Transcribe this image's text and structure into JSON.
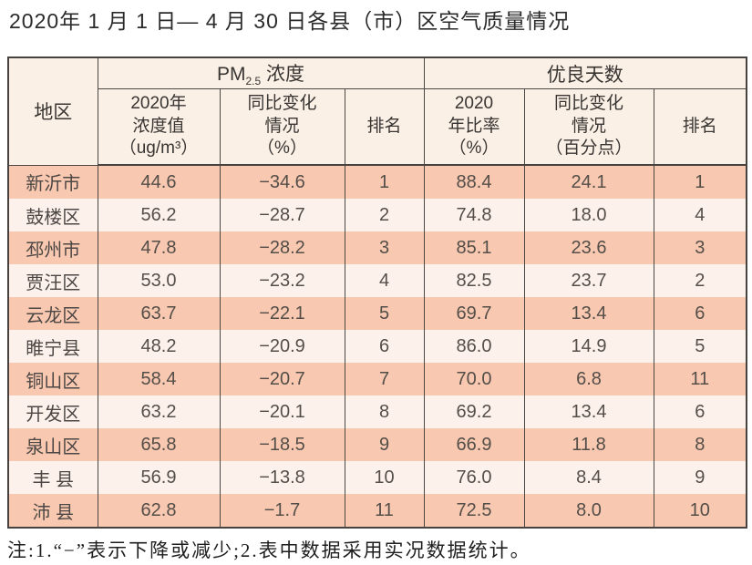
{
  "title": "2020年 1 月 1 日— 4 月 30 日各县（市）区空气质量情况",
  "table": {
    "header": {
      "region": "地区",
      "pm_group_prefix": "PM",
      "pm_group_sub": "2.5",
      "pm_group_suffix": " 浓度",
      "good_days_group": "优良天数",
      "pm_value": "2020年\n浓度值\n（ug/m³）",
      "pm_change": "同比变化\n情况\n（%）",
      "pm_rank": "排名",
      "rate_value": "2020\n年比率\n（%）",
      "rate_change": "同比变化\n情况\n（百分点）",
      "rate_rank": "排名"
    },
    "rows": [
      {
        "region": "新沂市",
        "pm_value": "44.6",
        "pm_change": "−34.6",
        "pm_rank": "1",
        "rate_value": "88.4",
        "rate_change": "24.1",
        "rate_rank": "1"
      },
      {
        "region": "鼓楼区",
        "pm_value": "56.2",
        "pm_change": "−28.7",
        "pm_rank": "2",
        "rate_value": "74.8",
        "rate_change": "18.0",
        "rate_rank": "4"
      },
      {
        "region": "邳州市",
        "pm_value": "47.8",
        "pm_change": "−28.2",
        "pm_rank": "3",
        "rate_value": "85.1",
        "rate_change": "23.6",
        "rate_rank": "3"
      },
      {
        "region": "贾汪区",
        "pm_value": "53.0",
        "pm_change": "−23.2",
        "pm_rank": "4",
        "rate_value": "82.5",
        "rate_change": "23.7",
        "rate_rank": "2"
      },
      {
        "region": "云龙区",
        "pm_value": "63.7",
        "pm_change": "−22.1",
        "pm_rank": "5",
        "rate_value": "69.7",
        "rate_change": "13.4",
        "rate_rank": "6"
      },
      {
        "region": "睢宁县",
        "pm_value": "48.2",
        "pm_change": "−20.9",
        "pm_rank": "6",
        "rate_value": "86.0",
        "rate_change": "14.9",
        "rate_rank": "5"
      },
      {
        "region": "铜山区",
        "pm_value": "58.4",
        "pm_change": "−20.7",
        "pm_rank": "7",
        "rate_value": "70.0",
        "rate_change": "6.8",
        "rate_rank": "11"
      },
      {
        "region": "开发区",
        "pm_value": "63.2",
        "pm_change": "−20.1",
        "pm_rank": "8",
        "rate_value": "69.2",
        "rate_change": "13.4",
        "rate_rank": "6"
      },
      {
        "region": "泉山区",
        "pm_value": "65.8",
        "pm_change": "−18.5",
        "pm_rank": "9",
        "rate_value": "66.9",
        "rate_change": "11.8",
        "rate_rank": "8"
      },
      {
        "region": "丰 县",
        "pm_value": "56.9",
        "pm_change": "−13.8",
        "pm_rank": "10",
        "rate_value": "76.0",
        "rate_change": "8.4",
        "rate_rank": "9"
      },
      {
        "region": "沛 县",
        "pm_value": "62.8",
        "pm_change": "−1.7",
        "pm_rank": "11",
        "rate_value": "72.5",
        "rate_change": "8.0",
        "rate_rank": "10"
      }
    ]
  },
  "footnote": "注:1.“−”表示下降或减少;2.表中数据采用实况数据统计。",
  "colors": {
    "row_salmon": "#f8c8b0",
    "row_light": "#fdf2eb",
    "header_bg": "#fbf0e5",
    "border": "#4a4745",
    "text": "#544e49"
  },
  "chart_data": {
    "type": "table",
    "title": "2020年1月1日—4月30日各县（市）区空气质量情况",
    "columns": [
      "地区",
      "PM2.5浓度 2020年浓度值（ug/m³）",
      "PM2.5浓度 同比变化情况（%）",
      "PM2.5浓度 排名",
      "优良天数 2020年比率（%）",
      "优良天数 同比变化情况（百分点）",
      "优良天数 排名"
    ],
    "rows": [
      [
        "新沂市",
        44.6,
        -34.6,
        1,
        88.4,
        24.1,
        1
      ],
      [
        "鼓楼区",
        56.2,
        -28.7,
        2,
        74.8,
        18.0,
        4
      ],
      [
        "邳州市",
        47.8,
        -28.2,
        3,
        85.1,
        23.6,
        3
      ],
      [
        "贾汪区",
        53.0,
        -23.2,
        4,
        82.5,
        23.7,
        2
      ],
      [
        "云龙区",
        63.7,
        -22.1,
        5,
        69.7,
        13.4,
        6
      ],
      [
        "睢宁县",
        48.2,
        -20.9,
        6,
        86.0,
        14.9,
        5
      ],
      [
        "铜山区",
        58.4,
        -20.7,
        7,
        70.0,
        6.8,
        11
      ],
      [
        "开发区",
        63.2,
        -20.1,
        8,
        69.2,
        13.4,
        6
      ],
      [
        "泉山区",
        65.8,
        -18.5,
        9,
        66.9,
        11.8,
        8
      ],
      [
        "丰县",
        56.9,
        -13.8,
        10,
        76.0,
        8.4,
        9
      ],
      [
        "沛县",
        62.8,
        -1.7,
        11,
        72.5,
        8.0,
        10
      ]
    ]
  }
}
